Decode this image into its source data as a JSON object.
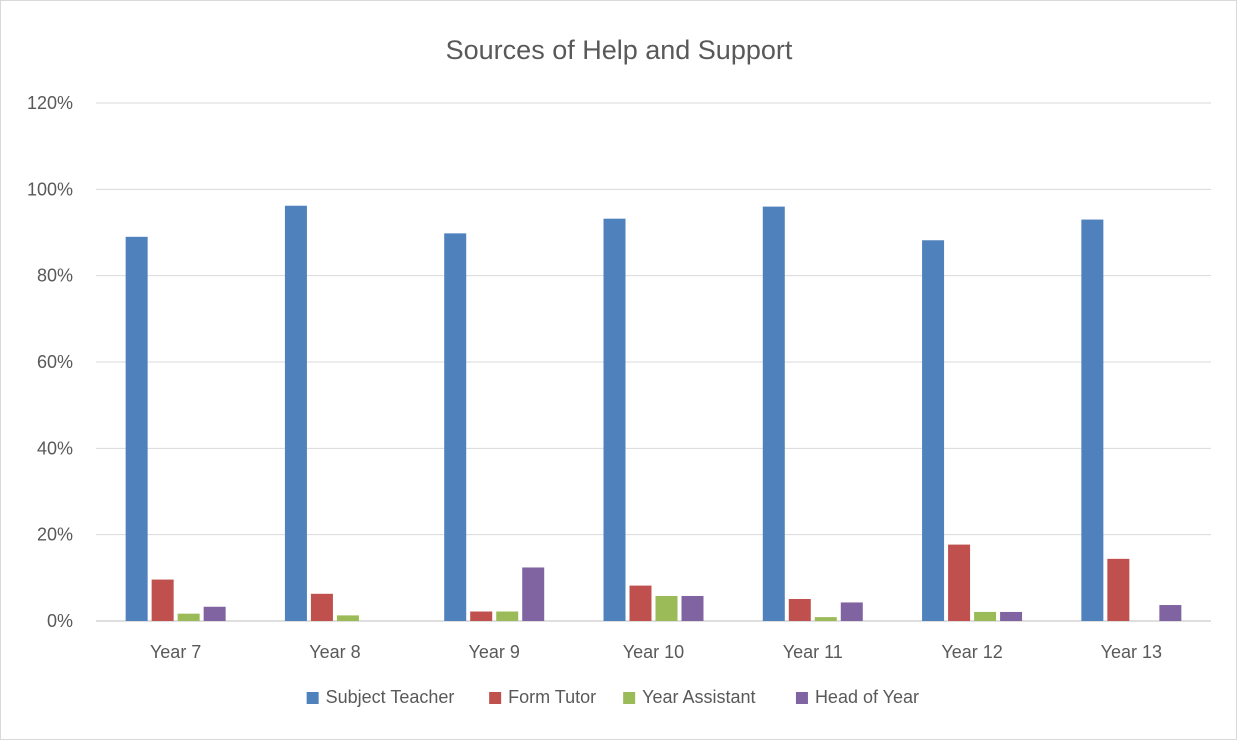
{
  "chart_data": {
    "type": "bar",
    "title": "Sources of Help and Support",
    "xlabel": "",
    "ylabel": "",
    "ylim": [
      0,
      120
    ],
    "y_ticks": [
      "0%",
      "20%",
      "40%",
      "60%",
      "80%",
      "100%",
      "120%"
    ],
    "categories": [
      "Year 7",
      "Year 8",
      "Year 9",
      "Year 10",
      "Year 11",
      "Year 12",
      "Year 13"
    ],
    "series": [
      {
        "name": "Subject Teacher",
        "color": "#4f81bd",
        "values": [
          89,
          96.2,
          89.8,
          93.2,
          96,
          88.2,
          93
        ]
      },
      {
        "name": "Form Tutor",
        "color": "#c0504d",
        "values": [
          9.6,
          6.3,
          2.2,
          8.2,
          5.1,
          17.7,
          14.4
        ]
      },
      {
        "name": "Year Assistant",
        "color": "#9bbb59",
        "values": [
          1.7,
          1.3,
          2.2,
          5.8,
          0.9,
          2.1,
          0
        ]
      },
      {
        "name": "Head of Year",
        "color": "#8064a2",
        "values": [
          3.3,
          0,
          12.4,
          5.8,
          4.3,
          2.1,
          3.7
        ]
      }
    ],
    "grid": true,
    "legend_position": "bottom"
  }
}
